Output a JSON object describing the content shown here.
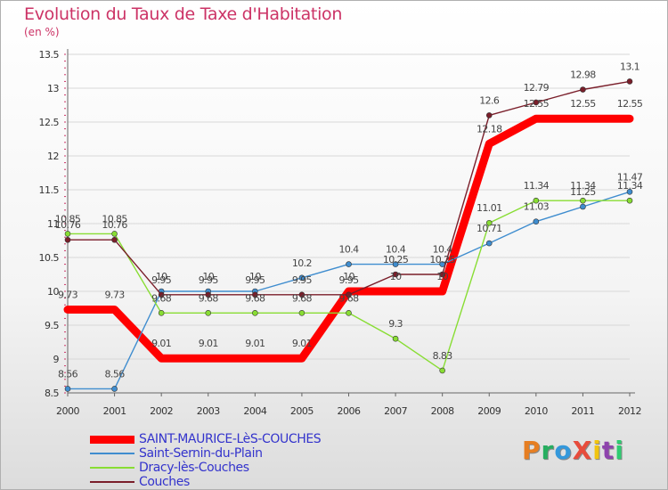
{
  "title": "Evolution du Taux de Taxe d'Habitation",
  "subtitle": "(en %)",
  "logo_text": "ProXiti",
  "logo_colors": [
    "#e67e22",
    "#27ae60",
    "#3498db",
    "#e74c3c",
    "#f1c40f",
    "#8e44ad",
    "#2ecc71"
  ],
  "chart_data": {
    "type": "line",
    "title": "Evolution du Taux de Taxe d'Habitation",
    "ylabel": "(en %)",
    "xlabel": "",
    "x": [
      "2000",
      "2001",
      "2002",
      "2003",
      "2004",
      "2005",
      "2006",
      "2007",
      "2008",
      "2009",
      "2010",
      "2011",
      "2012"
    ],
    "ylim": [
      8.5,
      13.5
    ],
    "yticks": [
      "8.5",
      "9",
      "9.5",
      "10",
      "10.5",
      "11",
      "11.5",
      "12",
      "12.5",
      "13",
      "13.5"
    ],
    "grid": "horizontal",
    "legend_position": "bottom-left",
    "series": [
      {
        "name": "SAINT-MAURICE-LèS-COUCHES",
        "color": "#ff0000",
        "thick": true,
        "values": [
          9.73,
          9.73,
          9.01,
          9.01,
          9.01,
          9.01,
          10,
          10,
          10,
          12.18,
          12.55,
          12.55,
          12.55
        ],
        "labels": [
          "9.73",
          "9.73",
          "9.01",
          "9.01",
          "9.01",
          "9.01",
          "10",
          "10",
          "10",
          "12.18",
          "12.55",
          "12.55",
          "12.55"
        ]
      },
      {
        "name": "Saint-Sernin-du-Plain",
        "color": "#3f8dcf",
        "thick": false,
        "values": [
          8.56,
          8.56,
          10,
          10,
          10,
          10.2,
          10.4,
          10.4,
          10.4,
          10.71,
          11.03,
          11.25,
          11.47
        ],
        "labels": [
          "8.56",
          "8.56",
          "10",
          "10",
          "10",
          "10.2",
          "10.4",
          "10.4",
          "10.4",
          "10.71",
          "11.03",
          "11.25",
          "11.47"
        ]
      },
      {
        "name": "Dracy-lès-Couches",
        "color": "#88dd33",
        "thick": false,
        "values": [
          10.85,
          10.85,
          9.68,
          9.68,
          9.68,
          9.68,
          9.68,
          9.3,
          8.83,
          11.01,
          11.34,
          11.34,
          11.34
        ],
        "labels": [
          "10.85",
          "10.85",
          "9.68",
          "9.68",
          "9.68",
          "9.68",
          "9.68",
          "9.3",
          "8.83",
          "11.01",
          "11.34",
          "11.34",
          "11.34"
        ]
      },
      {
        "name": "Couches",
        "color": "#7a1e2a",
        "thick": false,
        "values": [
          10.76,
          10.76,
          9.95,
          9.95,
          9.95,
          9.95,
          9.95,
          10.25,
          10.25,
          12.6,
          12.79,
          12.98,
          13.1
        ],
        "labels": [
          "10.76",
          "10.76",
          "9.95",
          "9.95",
          "9.95",
          "9.95",
          "9.95",
          "10.25",
          "10.25",
          "12.6",
          "12.79",
          "12.98",
          "13.1"
        ]
      }
    ]
  }
}
